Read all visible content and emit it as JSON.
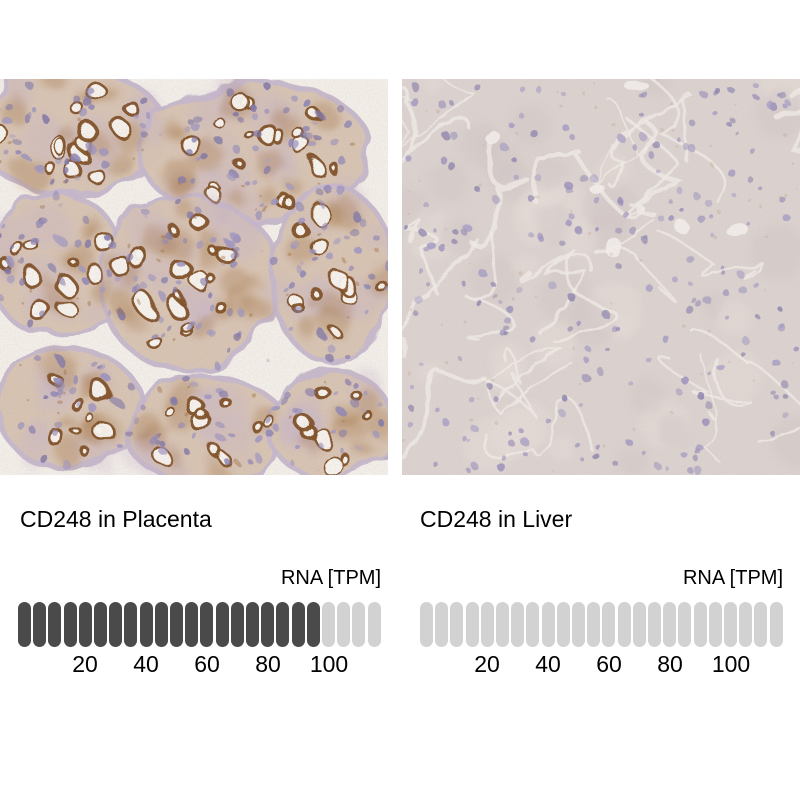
{
  "panels": [
    {
      "title": "CD248 in Placenta",
      "image_alt": "Immunohistochemistry micrograph of placenta: chorionic villi with strong brown membranous staining around white vacuoles and purple-blue nuclei on white background",
      "rna_label": "RNA [TPM]",
      "ticks": [
        "20",
        "40",
        "60",
        "80",
        "100"
      ],
      "segments_total": 24,
      "segments_filled": 20
    },
    {
      "title": "CD248 in Liver",
      "image_alt": "Immunohistochemistry micrograph of liver: uniform pale pinkish-gray hepatocyte field with small purple-blue nuclei and no brown staining",
      "rna_label": "RNA [TPM]",
      "ticks": [
        "20",
        "40",
        "60",
        "80",
        "100"
      ],
      "segments_total": 24,
      "segments_filled": 0
    }
  ],
  "colors": {
    "segment_filled": "#4a4a4a",
    "segment_empty": "#d2d2d2",
    "text": "#000000",
    "background": "#ffffff",
    "stain_brown": "#8a5a2e",
    "nuclei_purple": "#8d85b5"
  },
  "chart_data": [
    {
      "type": "bar",
      "title": "CD248 in Placenta",
      "unit": "RNA [TPM]",
      "axis_ticks": [
        20,
        40,
        60,
        80,
        100
      ],
      "axis_max": 120,
      "segment_value_tpm": 5,
      "segments_total": 24,
      "segments_filled": 20,
      "approx_value_tpm": 100
    },
    {
      "type": "bar",
      "title": "CD248 in Liver",
      "unit": "RNA [TPM]",
      "axis_ticks": [
        20,
        40,
        60,
        80,
        100
      ],
      "axis_max": 120,
      "segment_value_tpm": 5,
      "segments_total": 24,
      "segments_filled": 0,
      "approx_value_tpm": 0
    }
  ]
}
